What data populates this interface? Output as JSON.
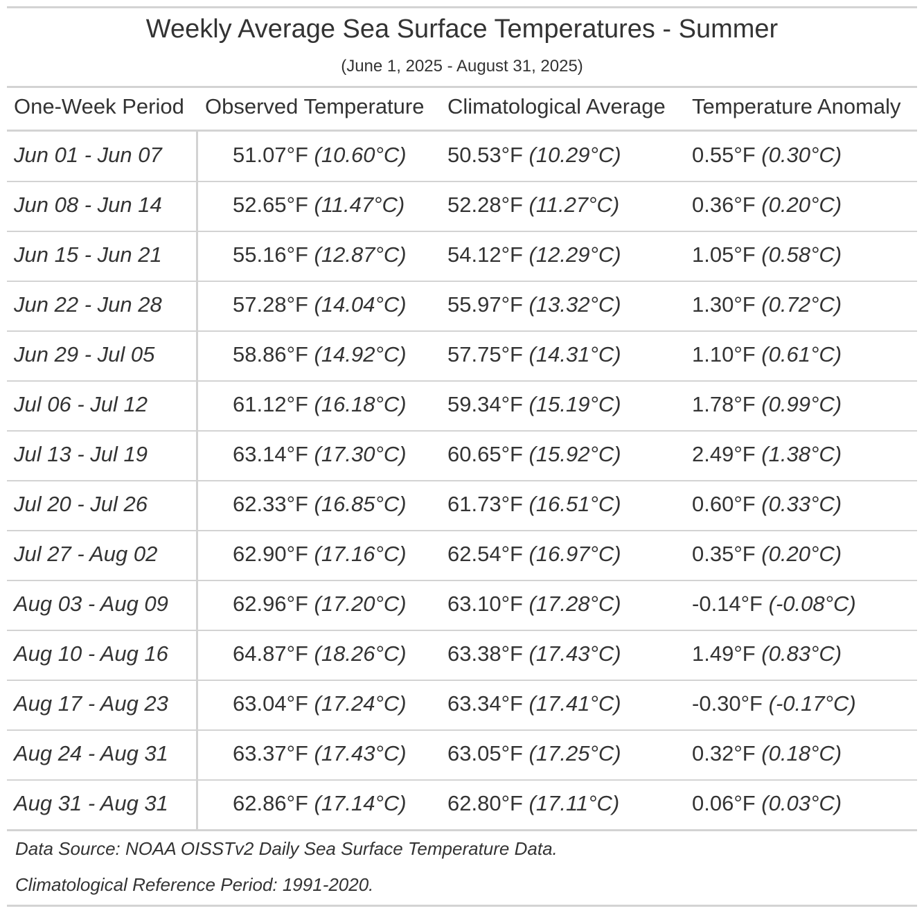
{
  "header": {
    "title": "Weekly Average Sea Surface Temperatures - Summer",
    "subtitle": "(June 1, 2025 - August 31, 2025)"
  },
  "table": {
    "columns": [
      "One-Week Period",
      "Observed Temperature",
      "Climatological Average",
      "Temperature Anomaly"
    ],
    "rows": [
      {
        "period": "Jun 01 - Jun 07",
        "observed": {
          "f": "51.07°F",
          "c": "(10.60°C)"
        },
        "climatological": {
          "f": "50.53°F",
          "c": "(10.29°C)"
        },
        "anomaly": {
          "f": "0.55°F",
          "c": "(0.30°C)"
        }
      },
      {
        "period": "Jun 08 - Jun 14",
        "observed": {
          "f": "52.65°F",
          "c": "(11.47°C)"
        },
        "climatological": {
          "f": "52.28°F",
          "c": "(11.27°C)"
        },
        "anomaly": {
          "f": "0.36°F",
          "c": "(0.20°C)"
        }
      },
      {
        "period": "Jun 15 - Jun 21",
        "observed": {
          "f": "55.16°F",
          "c": "(12.87°C)"
        },
        "climatological": {
          "f": "54.12°F",
          "c": "(12.29°C)"
        },
        "anomaly": {
          "f": "1.05°F",
          "c": "(0.58°C)"
        }
      },
      {
        "period": "Jun 22 - Jun 28",
        "observed": {
          "f": "57.28°F",
          "c": "(14.04°C)"
        },
        "climatological": {
          "f": "55.97°F",
          "c": "(13.32°C)"
        },
        "anomaly": {
          "f": "1.30°F",
          "c": "(0.72°C)"
        }
      },
      {
        "period": "Jun 29 - Jul 05",
        "observed": {
          "f": "58.86°F",
          "c": "(14.92°C)"
        },
        "climatological": {
          "f": "57.75°F",
          "c": "(14.31°C)"
        },
        "anomaly": {
          "f": "1.10°F",
          "c": "(0.61°C)"
        }
      },
      {
        "period": "Jul 06 - Jul 12",
        "observed": {
          "f": "61.12°F",
          "c": "(16.18°C)"
        },
        "climatological": {
          "f": "59.34°F",
          "c": "(15.19°C)"
        },
        "anomaly": {
          "f": "1.78°F",
          "c": "(0.99°C)"
        }
      },
      {
        "period": "Jul 13 - Jul 19",
        "observed": {
          "f": "63.14°F",
          "c": "(17.30°C)"
        },
        "climatological": {
          "f": "60.65°F",
          "c": "(15.92°C)"
        },
        "anomaly": {
          "f": "2.49°F",
          "c": "(1.38°C)"
        }
      },
      {
        "period": "Jul 20 - Jul 26",
        "observed": {
          "f": "62.33°F",
          "c": "(16.85°C)"
        },
        "climatological": {
          "f": "61.73°F",
          "c": "(16.51°C)"
        },
        "anomaly": {
          "f": "0.60°F",
          "c": "(0.33°C)"
        }
      },
      {
        "period": "Jul 27 - Aug 02",
        "observed": {
          "f": "62.90°F",
          "c": "(17.16°C)"
        },
        "climatological": {
          "f": "62.54°F",
          "c": "(16.97°C)"
        },
        "anomaly": {
          "f": "0.35°F",
          "c": "(0.20°C)"
        }
      },
      {
        "period": "Aug 03 - Aug 09",
        "observed": {
          "f": "62.96°F",
          "c": "(17.20°C)"
        },
        "climatological": {
          "f": "63.10°F",
          "c": "(17.28°C)"
        },
        "anomaly": {
          "f": "-0.14°F",
          "c": "(-0.08°C)"
        }
      },
      {
        "period": "Aug 10 - Aug 16",
        "observed": {
          "f": "64.87°F",
          "c": "(18.26°C)"
        },
        "climatological": {
          "f": "63.38°F",
          "c": "(17.43°C)"
        },
        "anomaly": {
          "f": "1.49°F",
          "c": "(0.83°C)"
        }
      },
      {
        "period": "Aug 17 - Aug 23",
        "observed": {
          "f": "63.04°F",
          "c": "(17.24°C)"
        },
        "climatological": {
          "f": "63.34°F",
          "c": "(17.41°C)"
        },
        "anomaly": {
          "f": "-0.30°F",
          "c": "(-0.17°C)"
        }
      },
      {
        "period": "Aug 24 - Aug 31",
        "observed": {
          "f": "63.37°F",
          "c": "(17.43°C)"
        },
        "climatological": {
          "f": "63.05°F",
          "c": "(17.25°C)"
        },
        "anomaly": {
          "f": "0.32°F",
          "c": "(0.18°C)"
        }
      },
      {
        "period": "Aug 31 - Aug 31",
        "observed": {
          "f": "62.86°F",
          "c": "(17.14°C)"
        },
        "climatological": {
          "f": "62.80°F",
          "c": "(17.11°C)"
        },
        "anomaly": {
          "f": "0.06°F",
          "c": "(0.03°C)"
        }
      }
    ]
  },
  "footnotes": [
    "Data Source: NOAA OISSTv2 Daily Sea Surface Temperature Data.",
    "Climatological Reference Period: 1991-2020."
  ]
}
